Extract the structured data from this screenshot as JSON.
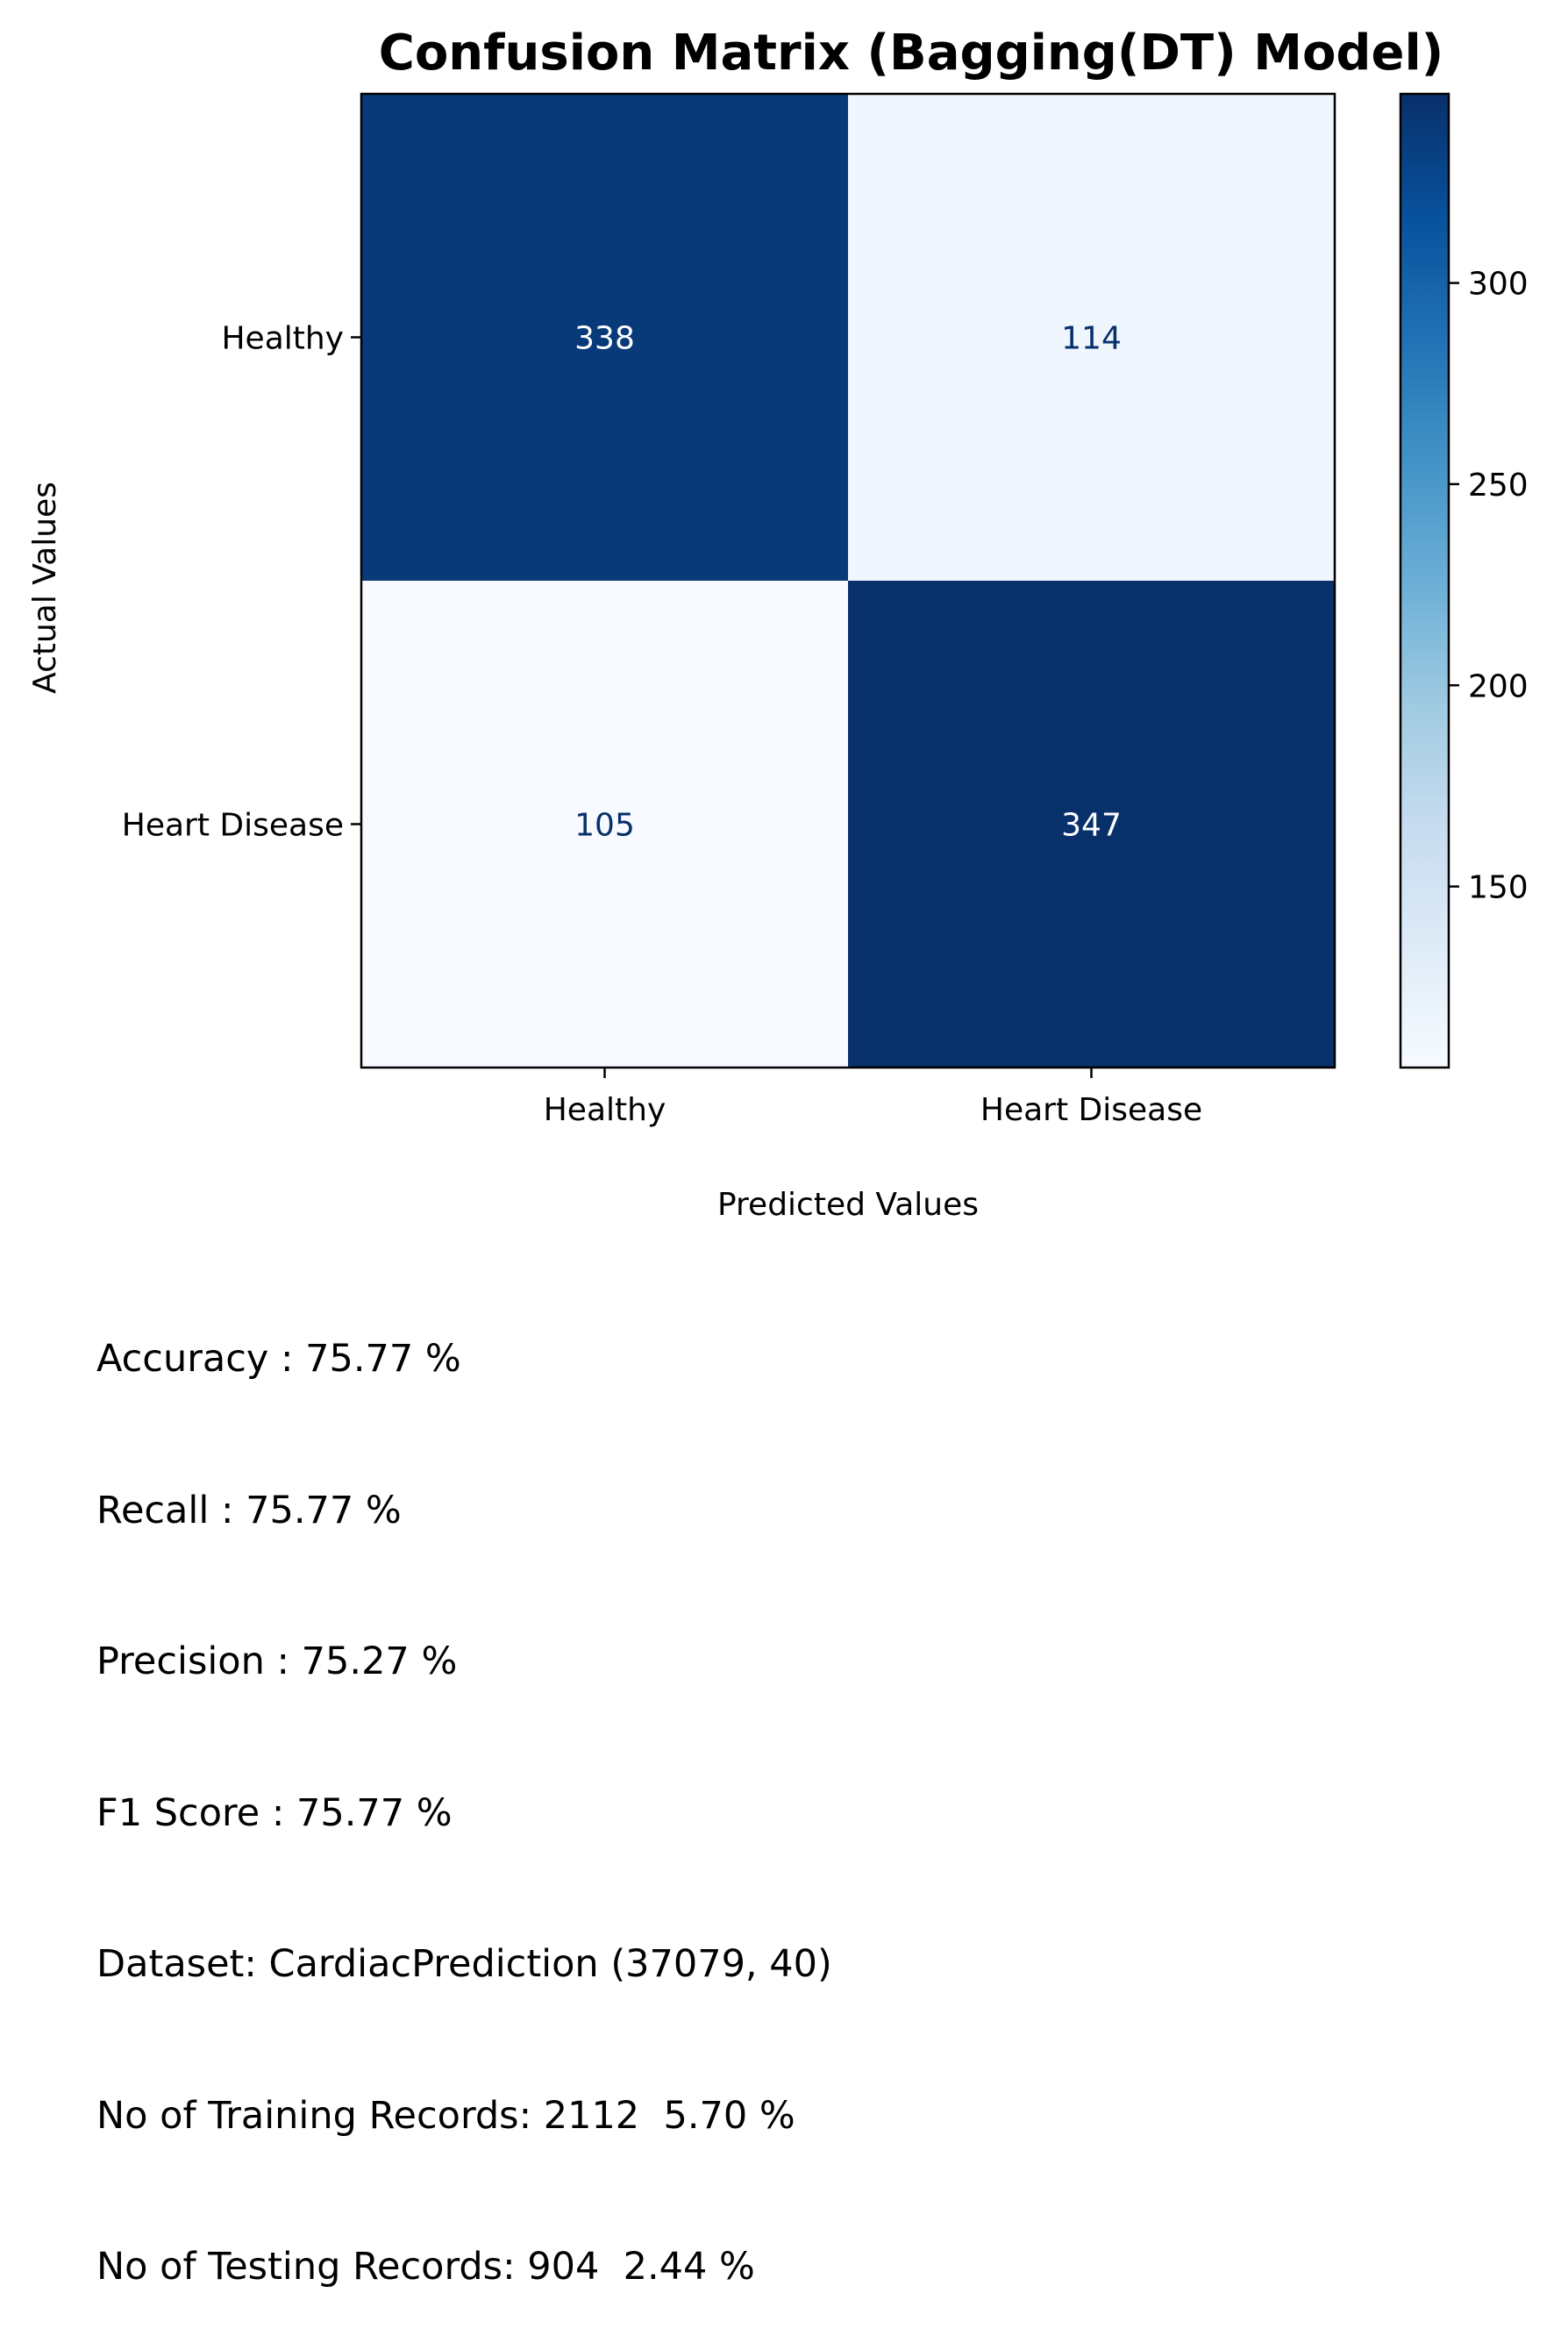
{
  "chart_data": {
    "type": "heatmap",
    "title": "Confusion Matrix (Bagging(DT) Model)",
    "xlabel": "Predicted Values",
    "ylabel": "Actual Values",
    "x_categories": [
      "Healthy",
      "Heart Disease"
    ],
    "y_categories": [
      "Healthy",
      "Heart Disease"
    ],
    "values": [
      [
        338,
        114
      ],
      [
        105,
        347
      ]
    ],
    "colormap": "Blues",
    "colorbar": {
      "vmin": 105,
      "vmax": 347,
      "ticks": [
        150,
        200,
        250,
        300
      ]
    },
    "text_color_dark_cells": "#ffffff",
    "text_color_light_cells": "#08306b",
    "grid": false
  },
  "stats": [
    "Accuracy : 75.77 %",
    "Recall : 75.77 %",
    "Precision : 75.27 %",
    "F1 Score : 75.77 %",
    "Dataset: CardiacPrediction (37079, 40)",
    "No of Training Records: 2112  5.70 %",
    "No of Testing Records: 904  2.44 %"
  ]
}
